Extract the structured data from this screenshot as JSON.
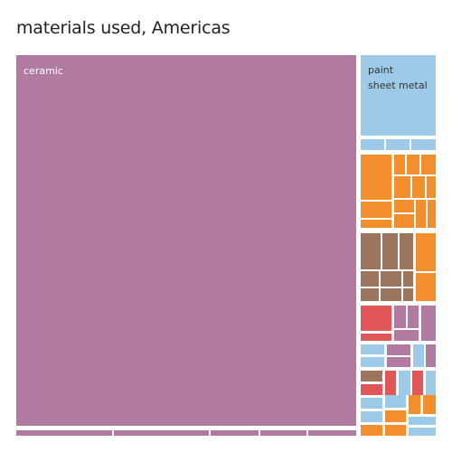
{
  "page": {
    "title": "materials used, Americas"
  },
  "chart_data": {
    "type": "treemap",
    "title": "materials used, Americas",
    "palette": {
      "ceramic": "#b07aa1",
      "blue": "#9ecae9",
      "orange": "#f28e2b",
      "brown": "#9c755f",
      "red": "#e15759"
    },
    "labels": {
      "ceramic": "ceramic",
      "paint_line1": "paint",
      "paint_line2": "sheet metal"
    }
  }
}
